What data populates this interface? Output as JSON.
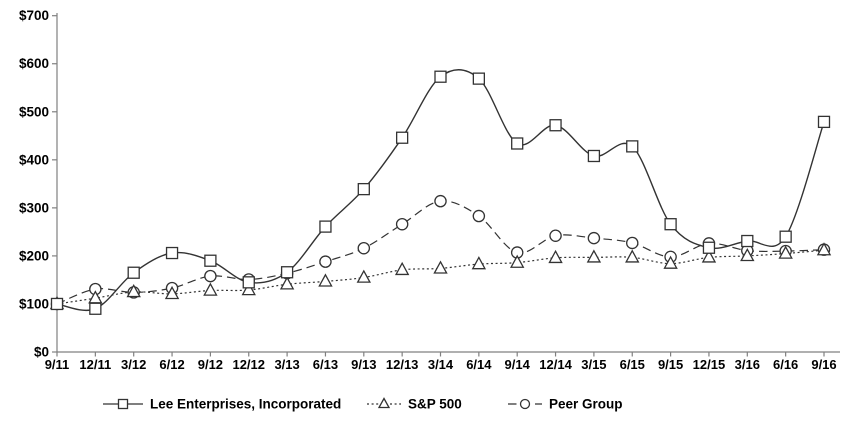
{
  "chart_data": {
    "type": "line",
    "title": "",
    "xlabel": "",
    "ylabel": "",
    "categories": [
      "9/11",
      "12/11",
      "3/12",
      "6/12",
      "9/12",
      "12/12",
      "3/13",
      "6/13",
      "9/13",
      "12/13",
      "3/14",
      "6/14",
      "9/14",
      "12/14",
      "3/15",
      "6/15",
      "9/15",
      "12/15",
      "3/16",
      "6/16",
      "9/16"
    ],
    "series": [
      {
        "name": "Lee Enterprises, Incorporated",
        "marker": "square",
        "line_style": "solid",
        "values": [
          100,
          90,
          165,
          206,
          190,
          145,
          166,
          261,
          339,
          446,
          573,
          569,
          434,
          472,
          408,
          428,
          266,
          217,
          231,
          240,
          479
        ]
      },
      {
        "name": "S&P 500",
        "marker": "triangle",
        "line_style": "dotted",
        "values": [
          100,
          112,
          125,
          121,
          128,
          129,
          141,
          147,
          155,
          171,
          174,
          183,
          186,
          196,
          197,
          197,
          184,
          197,
          200,
          205,
          212
        ]
      },
      {
        "name": "Peer Group",
        "marker": "circle",
        "line_style": "dashed",
        "values": [
          100,
          131,
          124,
          133,
          158,
          151,
          164,
          188,
          216,
          266,
          314,
          283,
          207,
          242,
          237,
          227,
          198,
          226,
          211,
          210,
          213
        ]
      }
    ],
    "ylim": [
      0,
      700
    ],
    "ytick_step": 100,
    "ytick_labels": [
      "$0",
      "$100",
      "$200",
      "$300",
      "$400",
      "$500",
      "$600",
      "$700"
    ],
    "grid": false,
    "legend_position": "bottom",
    "colors": {
      "line": "#333333",
      "axis": "#808080",
      "text": "#000000",
      "background": "#ffffff"
    }
  }
}
